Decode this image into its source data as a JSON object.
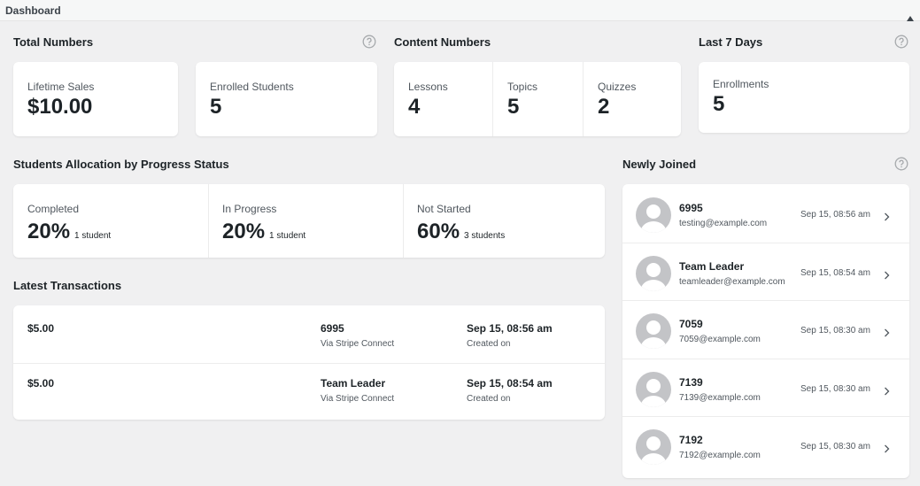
{
  "header": {
    "title": "Dashboard"
  },
  "total_numbers": {
    "title": "Total Numbers",
    "cards": [
      {
        "label": "Lifetime Sales",
        "value": "$10.00"
      },
      {
        "label": "Enrolled Students",
        "value": "5"
      }
    ]
  },
  "content_numbers": {
    "title": "Content Numbers",
    "cards": [
      {
        "label": "Lessons",
        "value": "4"
      },
      {
        "label": "Topics",
        "value": "5"
      },
      {
        "label": "Quizzes",
        "value": "2"
      }
    ]
  },
  "last_7_days": {
    "title": "Last 7 Days",
    "cards": [
      {
        "label": "Enrollments",
        "value": "5"
      }
    ]
  },
  "progress": {
    "title": "Students Allocation by Progress Status",
    "items": [
      {
        "label": "Completed",
        "value": "20%",
        "note": "1 student"
      },
      {
        "label": "In Progress",
        "value": "20%",
        "note": "1 student"
      },
      {
        "label": "Not Started",
        "value": "60%",
        "note": "3 students"
      }
    ]
  },
  "transactions": {
    "title": "Latest Transactions",
    "rows": [
      {
        "amount": "$5.00",
        "name": "6995",
        "method": "Via Stripe Connect",
        "date": "Sep 15, 08:56 am",
        "date_label": "Created on"
      },
      {
        "amount": "$5.00",
        "name": "Team Leader",
        "method": "Via Stripe Connect",
        "date": "Sep 15, 08:54 am",
        "date_label": "Created on"
      }
    ]
  },
  "newly_joined": {
    "title": "Newly Joined",
    "users": [
      {
        "name": "6995",
        "email": "testing@example.com",
        "date": "Sep 15, 08:56 am"
      },
      {
        "name": "Team Leader",
        "email": "teamleader@example.com",
        "date": "Sep 15, 08:54 am"
      },
      {
        "name": "7059",
        "email": "7059@example.com",
        "date": "Sep 15, 08:30 am"
      },
      {
        "name": "7139",
        "email": "7139@example.com",
        "date": "Sep 15, 08:30 am"
      },
      {
        "name": "7192",
        "email": "7192@example.com",
        "date": "Sep 15, 08:30 am"
      }
    ]
  }
}
